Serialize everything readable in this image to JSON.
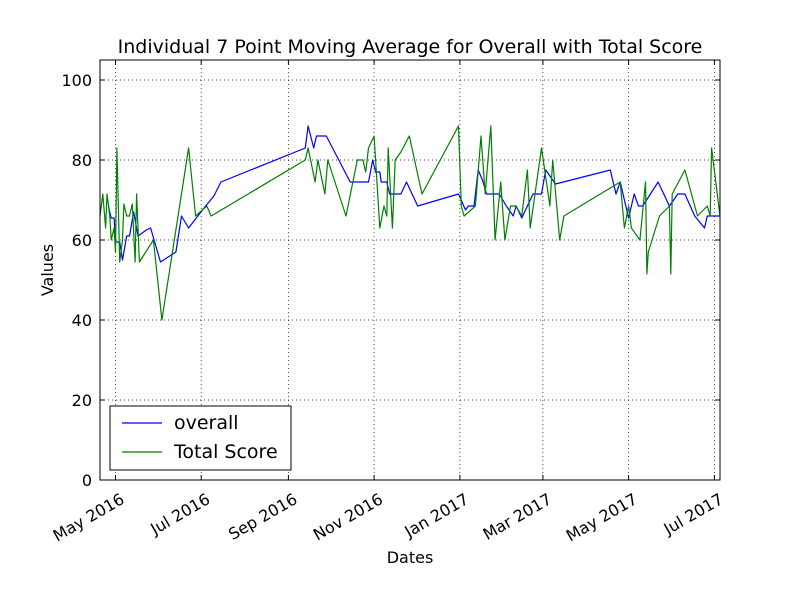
{
  "chart_data": {
    "type": "line",
    "title": "Individual 7 Point Moving Average for Overall with Total Score",
    "xlabel": "Dates",
    "ylabel": "Values",
    "xlim": [
      "2016-04-20",
      "2017-07-05"
    ],
    "ylim": [
      0,
      105
    ],
    "grid": true,
    "legend_position": "lower-left",
    "x_tick_labels": [
      "May 2016",
      "Jul 2016",
      "Sep 2016",
      "Nov 2016",
      "Jan 2017",
      "Mar 2017",
      "May 2017",
      "Jul 2017"
    ],
    "x_tick_dates": [
      "2016-05-01",
      "2016-07-01",
      "2016-09-01",
      "2016-11-01",
      "2017-01-01",
      "2017-03-01",
      "2017-05-01",
      "2017-07-01"
    ],
    "y_ticks": [
      0,
      20,
      40,
      60,
      80,
      100
    ],
    "y_tick_labels": [
      "0",
      "20",
      "40",
      "60",
      "80",
      "100"
    ],
    "series": [
      {
        "name": "overall",
        "color": "#0000ff",
        "points": [
          [
            "2016-04-26",
            68.5
          ],
          [
            "2016-04-28",
            65.5
          ],
          [
            "2016-04-30",
            65.5
          ],
          [
            "2016-05-01",
            59.5
          ],
          [
            "2016-05-04",
            59.5
          ],
          [
            "2016-05-06",
            55.0
          ],
          [
            "2016-05-09",
            61.0
          ],
          [
            "2016-05-11",
            61.0
          ],
          [
            "2016-05-14",
            67.0
          ],
          [
            "2016-05-17",
            61.0
          ],
          [
            "2016-05-23",
            62.5
          ],
          [
            "2016-05-26",
            63.0
          ],
          [
            "2016-06-02",
            54.5
          ],
          [
            "2016-06-13",
            57.0
          ],
          [
            "2016-06-17",
            66.0
          ],
          [
            "2016-06-22",
            63.0
          ],
          [
            "2016-07-03",
            68.0
          ],
          [
            "2016-07-10",
            71.0
          ],
          [
            "2016-07-15",
            74.5
          ],
          [
            "2016-09-13",
            83.0
          ],
          [
            "2016-09-15",
            88.5
          ],
          [
            "2016-09-19",
            83.0
          ],
          [
            "2016-09-21",
            86.0
          ],
          [
            "2016-09-28",
            86.0
          ],
          [
            "2016-10-15",
            74.5
          ],
          [
            "2016-10-28",
            74.5
          ],
          [
            "2016-10-31",
            80.0
          ],
          [
            "2016-11-02",
            77.0
          ],
          [
            "2016-11-05",
            77.0
          ],
          [
            "2016-11-06",
            74.5
          ],
          [
            "2016-11-10",
            74.5
          ],
          [
            "2016-11-12",
            71.5
          ],
          [
            "2016-11-20",
            71.5
          ],
          [
            "2016-11-24",
            74.5
          ],
          [
            "2016-12-02",
            68.5
          ],
          [
            "2016-12-31",
            71.5
          ],
          [
            "2017-01-05",
            67.5
          ],
          [
            "2017-01-07",
            68.5
          ],
          [
            "2017-01-11",
            68.5
          ],
          [
            "2017-01-14",
            77.5
          ],
          [
            "2017-01-17",
            75.0
          ],
          [
            "2017-01-20",
            71.5
          ],
          [
            "2017-01-25",
            71.5
          ],
          [
            "2017-01-29",
            71.5
          ],
          [
            "2017-02-03",
            68.5
          ],
          [
            "2017-02-08",
            66.0
          ],
          [
            "2017-02-10",
            68.5
          ],
          [
            "2017-02-14",
            65.5
          ],
          [
            "2017-02-22",
            71.5
          ],
          [
            "2017-02-28",
            71.5
          ],
          [
            "2017-03-03",
            77.5
          ],
          [
            "2017-03-10",
            74.0
          ],
          [
            "2017-04-18",
            77.5
          ],
          [
            "2017-04-22",
            71.5
          ],
          [
            "2017-04-25",
            74.5
          ],
          [
            "2017-04-29",
            68.5
          ],
          [
            "2017-05-01",
            65.5
          ],
          [
            "2017-05-05",
            71.5
          ],
          [
            "2017-05-08",
            68.5
          ],
          [
            "2017-05-11",
            68.5
          ],
          [
            "2017-05-22",
            74.5
          ],
          [
            "2017-05-30",
            68.5
          ],
          [
            "2017-06-05",
            71.5
          ],
          [
            "2017-06-10",
            71.5
          ],
          [
            "2017-06-17",
            66.0
          ],
          [
            "2017-06-24",
            63.0
          ],
          [
            "2017-06-26",
            66.0
          ],
          [
            "2017-07-05",
            66.0
          ]
        ]
      },
      {
        "name": "Total Score",
        "color": "#008000",
        "points": [
          [
            "2016-04-20",
            66.0
          ],
          [
            "2016-04-22",
            71.5
          ],
          [
            "2016-04-24",
            63.0
          ],
          [
            "2016-04-25",
            71.5
          ],
          [
            "2016-04-27",
            66.0
          ],
          [
            "2016-04-28",
            60.0
          ],
          [
            "2016-04-30",
            63.0
          ],
          [
            "2016-05-01",
            57.0
          ],
          [
            "2016-05-02",
            83.0
          ],
          [
            "2016-05-04",
            54.5
          ],
          [
            "2016-05-06",
            60.0
          ],
          [
            "2016-05-07",
            69.0
          ],
          [
            "2016-05-09",
            66.0
          ],
          [
            "2016-05-11",
            66.0
          ],
          [
            "2016-05-13",
            69.0
          ],
          [
            "2016-05-15",
            54.5
          ],
          [
            "2016-05-16",
            71.5
          ],
          [
            "2016-05-18",
            54.5
          ],
          [
            "2016-05-28",
            60.0
          ],
          [
            "2016-06-03",
            40.0
          ],
          [
            "2016-06-22",
            83.0
          ],
          [
            "2016-06-27",
            66.0
          ],
          [
            "2016-07-05",
            68.5
          ],
          [
            "2016-07-08",
            66.0
          ],
          [
            "2016-09-13",
            80.0
          ],
          [
            "2016-09-15",
            83.0
          ],
          [
            "2016-09-20",
            74.5
          ],
          [
            "2016-09-22",
            80.0
          ],
          [
            "2016-09-27",
            71.5
          ],
          [
            "2016-09-29",
            80.0
          ],
          [
            "2016-10-12",
            66.0
          ],
          [
            "2016-10-20",
            80.0
          ],
          [
            "2016-10-24",
            80.0
          ],
          [
            "2016-10-26",
            77.0
          ],
          [
            "2016-10-28",
            83.0
          ],
          [
            "2016-11-01",
            86.0
          ],
          [
            "2016-11-05",
            63.0
          ],
          [
            "2016-11-08",
            68.5
          ],
          [
            "2016-11-10",
            66.0
          ],
          [
            "2016-11-11",
            83.0
          ],
          [
            "2016-11-14",
            63.0
          ],
          [
            "2016-11-16",
            80.0
          ],
          [
            "2016-11-20",
            82.0
          ],
          [
            "2016-11-26",
            86.0
          ],
          [
            "2016-12-05",
            71.5
          ],
          [
            "2016-12-31",
            88.5
          ],
          [
            "2017-01-02",
            68.5
          ],
          [
            "2017-01-04",
            66.0
          ],
          [
            "2017-01-12",
            68.5
          ],
          [
            "2017-01-16",
            86.0
          ],
          [
            "2017-01-19",
            71.5
          ],
          [
            "2017-01-23",
            88.5
          ],
          [
            "2017-01-26",
            60.0
          ],
          [
            "2017-01-30",
            74.5
          ],
          [
            "2017-02-02",
            60.0
          ],
          [
            "2017-02-06",
            68.5
          ],
          [
            "2017-02-10",
            68.5
          ],
          [
            "2017-02-14",
            66.0
          ],
          [
            "2017-02-18",
            77.5
          ],
          [
            "2017-02-20",
            63.0
          ],
          [
            "2017-02-28",
            83.0
          ],
          [
            "2017-03-06",
            68.5
          ],
          [
            "2017-03-08",
            80.0
          ],
          [
            "2017-03-13",
            60.0
          ],
          [
            "2017-03-16",
            66.0
          ],
          [
            "2017-04-25",
            74.5
          ],
          [
            "2017-04-28",
            63.0
          ],
          [
            "2017-05-01",
            68.5
          ],
          [
            "2017-05-03",
            63.0
          ],
          [
            "2017-05-09",
            60.0
          ],
          [
            "2017-05-13",
            74.5
          ],
          [
            "2017-05-14",
            51.5
          ],
          [
            "2017-05-15",
            57.0
          ],
          [
            "2017-05-23",
            66.0
          ],
          [
            "2017-05-30",
            68.5
          ],
          [
            "2017-05-31",
            51.5
          ],
          [
            "2017-06-01",
            71.5
          ],
          [
            "2017-06-10",
            77.5
          ],
          [
            "2017-06-19",
            66.0
          ],
          [
            "2017-06-26",
            68.5
          ],
          [
            "2017-06-28",
            66.0
          ],
          [
            "2017-06-29",
            83.0
          ],
          [
            "2017-07-05",
            66.0
          ]
        ]
      }
    ]
  }
}
